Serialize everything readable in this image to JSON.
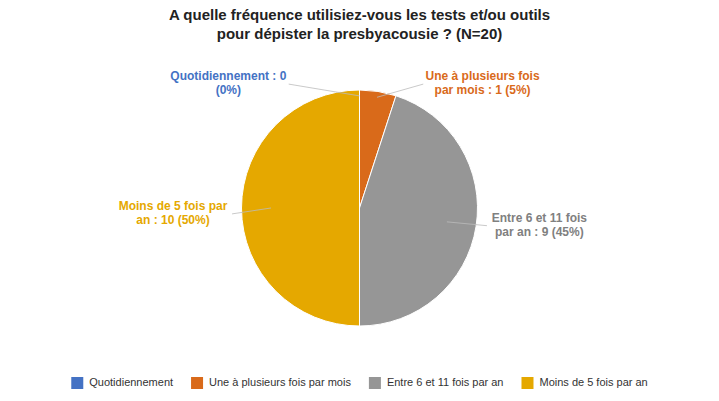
{
  "chart_data": {
    "type": "pie",
    "title": "A quelle fréquence utilisiez-vous les tests et/ou outils\npour dépister la presbyacousie ? (N=20)",
    "categories": [
      "Quotidiennement",
      "Une à plusieurs fois par mois",
      "Entre 6 et 11 fois par an",
      "Moins de 5 fois par an"
    ],
    "values": [
      0.001,
      5,
      45,
      50
    ],
    "colors": [
      "#4472C4",
      "#D96A1A",
      "#969696",
      "#E5A800"
    ],
    "legend": "bottom",
    "annotations": [
      {
        "text": "Quotidiennement : 0\n(0%)",
        "color": "#4472C4"
      },
      {
        "text": "Une à plusieurs fois\npar mois : 1 (5%)",
        "color": "#D96A1A"
      },
      {
        "text": "Entre 6 et 11 fois\npar an : 9 (45%)",
        "color": "#808080"
      },
      {
        "text": "Moins de 5 fois par\nan : 10 (50%)",
        "color": "#E5A800"
      }
    ]
  }
}
